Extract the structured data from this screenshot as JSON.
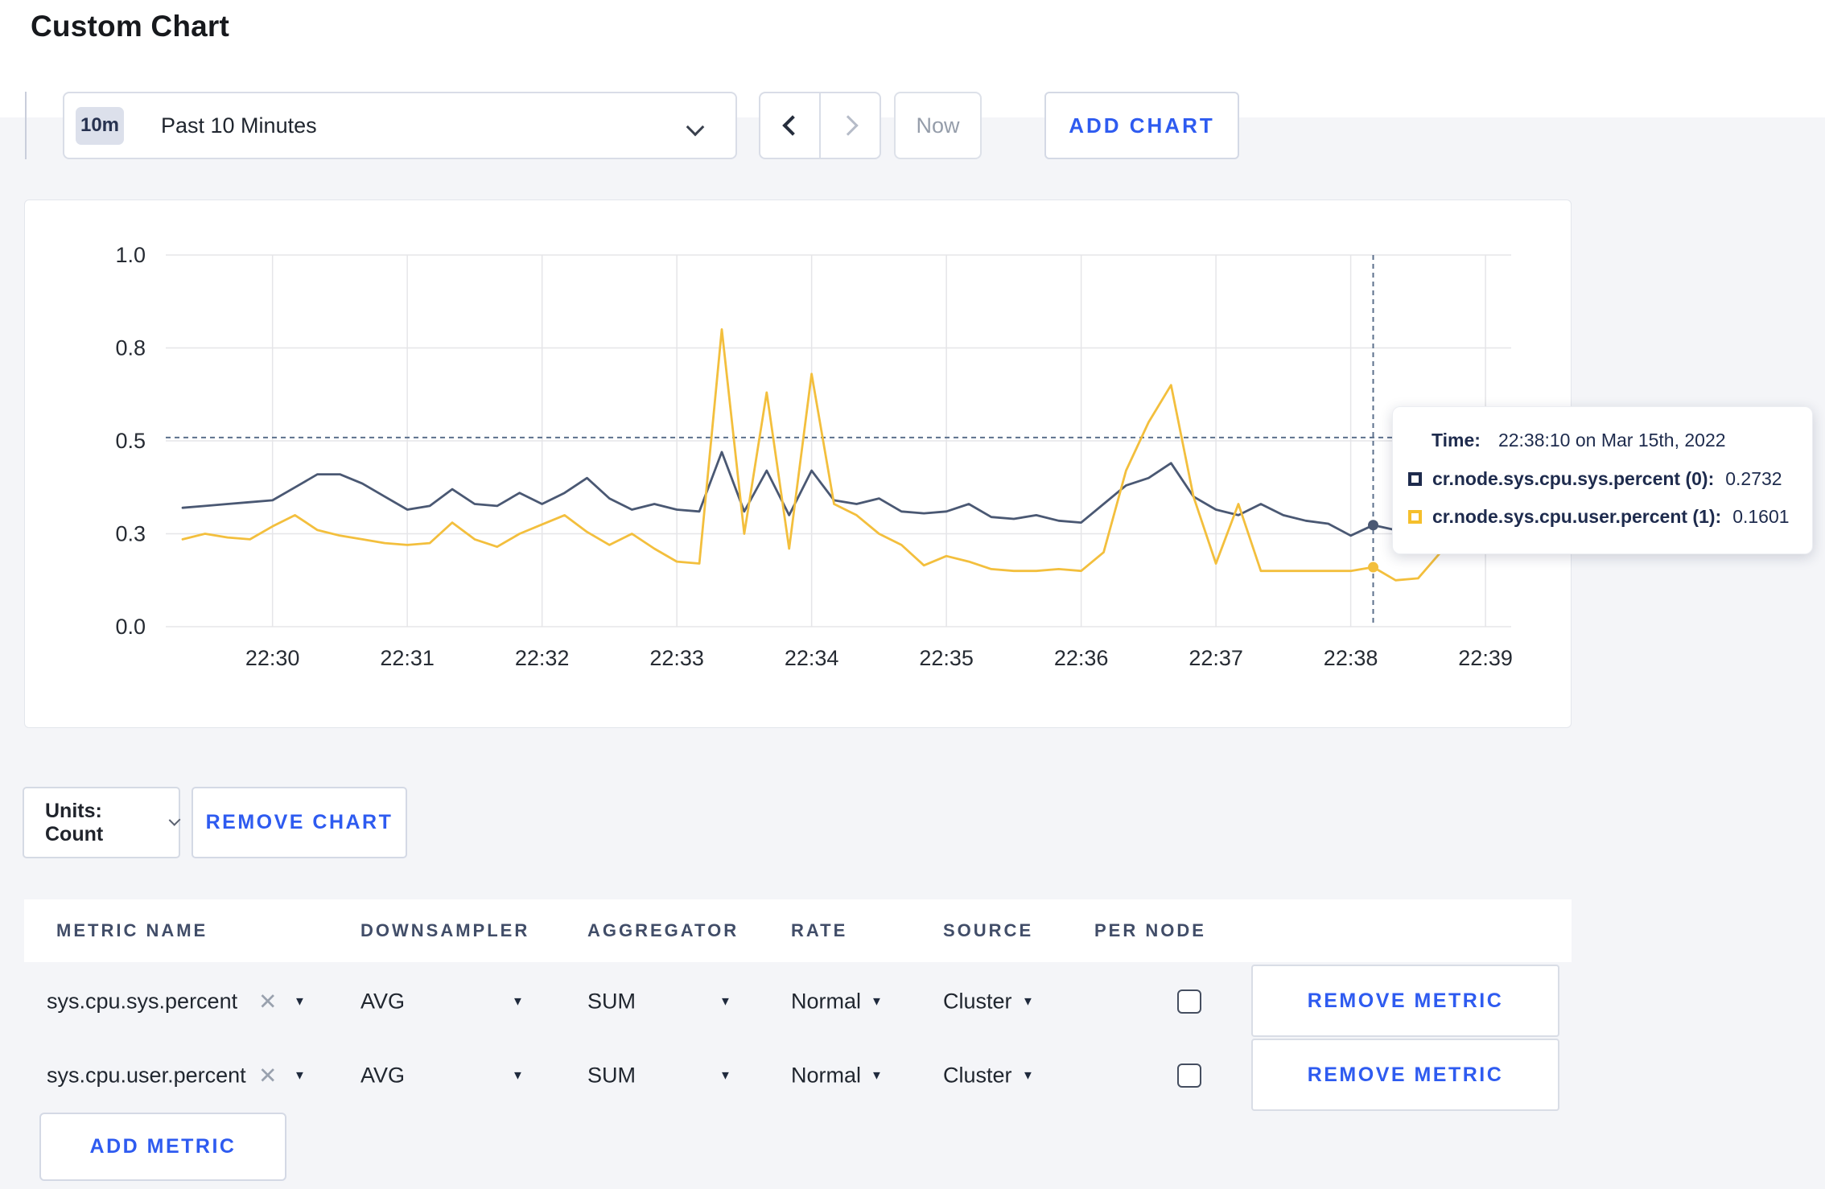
{
  "page": {
    "title": "Custom Chart"
  },
  "toolbar": {
    "time_range": {
      "badge": "10m",
      "label": "Past 10 Minutes"
    },
    "prev_icon": "chevron-left",
    "next_icon": "chevron-right",
    "now_label": "Now",
    "add_chart_label": "ADD CHART"
  },
  "chart_data": {
    "type": "line",
    "title": "",
    "x_start": "22:29:20",
    "x_step_seconds": 10,
    "x_ticks": [
      "22:30",
      "22:31",
      "22:32",
      "22:33",
      "22:34",
      "22:35",
      "22:36",
      "22:37",
      "22:38",
      "22:39"
    ],
    "y_tick_labels": [
      "1.0",
      "0.8",
      "0.5",
      "0.3",
      "0.0"
    ],
    "y_tick_values": [
      1.0,
      0.75,
      0.5,
      0.25,
      0.0
    ],
    "ylim": [
      0,
      1
    ],
    "grid": true,
    "series": [
      {
        "name": "cr.node.sys.cpu.sys.percent (0)",
        "color": "#4a5873",
        "values": [
          0.32,
          0.325,
          0.33,
          0.335,
          0.34,
          0.375,
          0.41,
          0.41,
          0.385,
          0.35,
          0.315,
          0.325,
          0.37,
          0.33,
          0.325,
          0.36,
          0.33,
          0.36,
          0.4,
          0.345,
          0.315,
          0.33,
          0.315,
          0.31,
          0.47,
          0.31,
          0.42,
          0.3,
          0.42,
          0.34,
          0.33,
          0.345,
          0.31,
          0.305,
          0.31,
          0.33,
          0.295,
          0.29,
          0.3,
          0.285,
          0.28,
          0.33,
          0.38,
          0.4,
          0.44,
          0.35,
          0.315,
          0.3,
          0.33,
          0.3,
          0.285,
          0.277,
          0.245,
          0.2732,
          0.26,
          0.27,
          0.285,
          0.29,
          0.3,
          0.3
        ]
      },
      {
        "name": "cr.node.sys.cpu.user.percent (1)",
        "color": "#f3bf3d",
        "values": [
          0.235,
          0.25,
          0.24,
          0.235,
          0.27,
          0.3,
          0.26,
          0.245,
          0.235,
          0.225,
          0.22,
          0.225,
          0.28,
          0.235,
          0.215,
          0.25,
          0.275,
          0.3,
          0.255,
          0.22,
          0.25,
          0.21,
          0.175,
          0.17,
          0.8,
          0.25,
          0.63,
          0.21,
          0.68,
          0.33,
          0.3,
          0.25,
          0.22,
          0.165,
          0.19,
          0.175,
          0.155,
          0.15,
          0.15,
          0.155,
          0.15,
          0.2,
          0.42,
          0.55,
          0.65,
          0.35,
          0.17,
          0.33,
          0.15,
          0.15,
          0.15,
          0.15,
          0.15,
          0.1601,
          0.125,
          0.13,
          0.2,
          0.3,
          0.22,
          0.27
        ]
      }
    ],
    "crosshair": {
      "index": 53,
      "time": "22:38:10",
      "y_value": 0.509
    },
    "legend_position": "tooltip"
  },
  "tooltip": {
    "time_label": "Time:",
    "time_value": "22:38:10 on Mar 15th, 2022",
    "rows": [
      {
        "label": "cr.node.sys.cpu.sys.percent (0):",
        "value": "0.2732",
        "color": "#1e2b4d"
      },
      {
        "label": "cr.node.sys.cpu.user.percent (1):",
        "value": "0.1601",
        "color": "#f5bf2c"
      }
    ]
  },
  "units": {
    "label": "Units: Count"
  },
  "remove_chart_label": "REMOVE CHART",
  "metrics_table": {
    "headers": [
      "METRIC NAME",
      "DOWNSAMPLER",
      "AGGREGATOR",
      "RATE",
      "SOURCE",
      "PER NODE"
    ],
    "rows": [
      {
        "metric": "sys.cpu.sys.percent",
        "downsampler": "AVG",
        "aggregator": "SUM",
        "rate": "Normal",
        "source": "Cluster",
        "per_node_checked": false,
        "remove_label": "REMOVE METRIC"
      },
      {
        "metric": "sys.cpu.user.percent",
        "downsampler": "AVG",
        "aggregator": "SUM",
        "rate": "Normal",
        "source": "Cluster",
        "per_node_checked": false,
        "remove_label": "REMOVE METRIC"
      }
    ],
    "add_metric_label": "ADD METRIC"
  },
  "colors": {
    "accent_blue": "#2e5bf0",
    "series_sys": "#4a5873",
    "series_user": "#f3bf3d",
    "grid": "#e5e5e8",
    "page_bg": "#f4f5f8"
  }
}
